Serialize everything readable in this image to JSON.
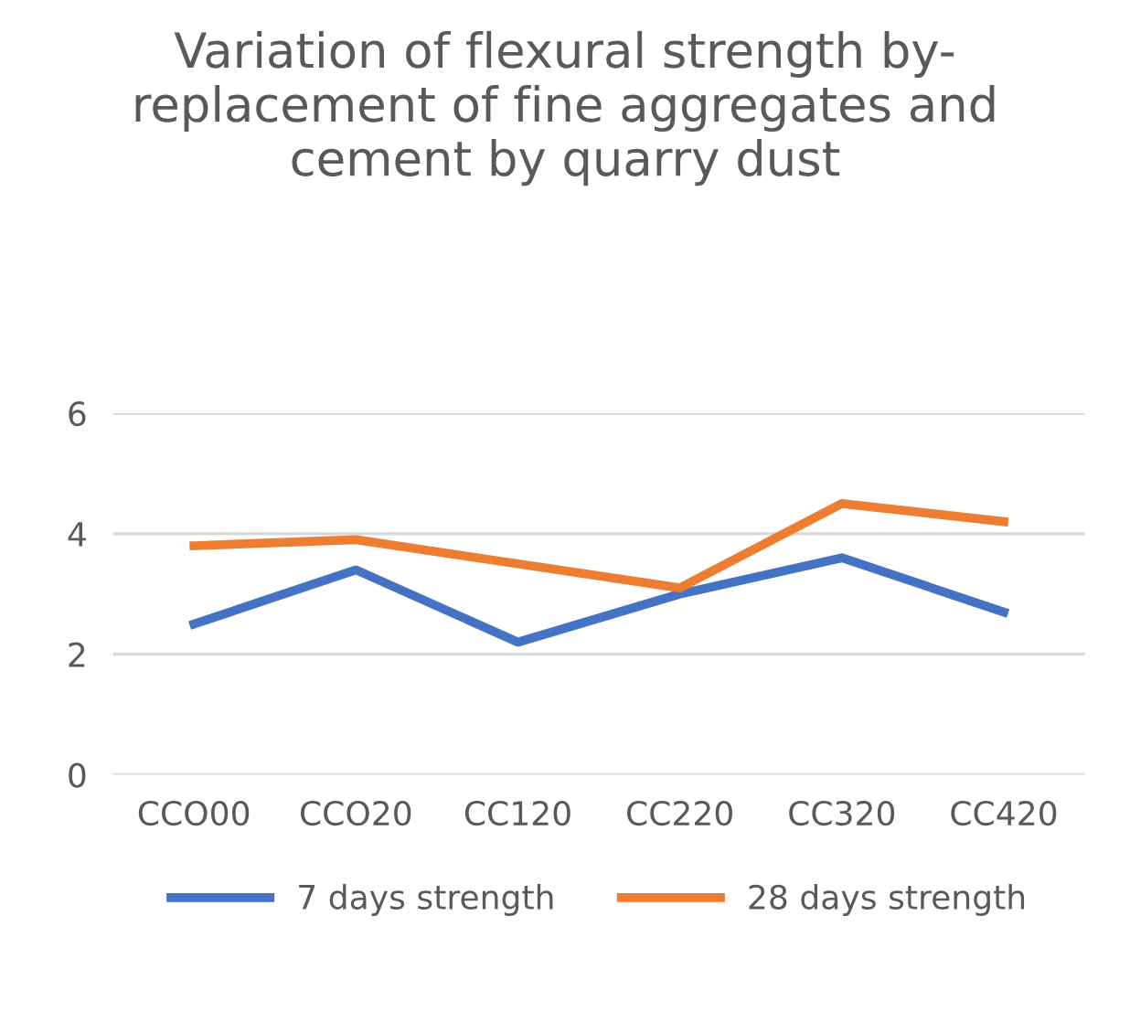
{
  "chart_data": {
    "type": "line",
    "title": "Variation of flexural strength by- replacement of fine aggregates and cement by quarry dust",
    "categories": [
      "CCO00",
      "CCO20",
      "CC120",
      "CC220",
      "CC320",
      "CC420"
    ],
    "series": [
      {
        "name": "7 days strength",
        "color": "#4472c4",
        "values": [
          2.5,
          3.4,
          2.2,
          3.0,
          3.6,
          2.7
        ]
      },
      {
        "name": "28 days strength",
        "color": "#ed7d31",
        "values": [
          3.8,
          3.9,
          3.5,
          3.1,
          4.5,
          4.2
        ]
      }
    ],
    "ylim": [
      0,
      6
    ],
    "yticks": [
      0,
      2,
      4,
      6
    ],
    "grid": "y",
    "legend": "bottom",
    "marker": "none",
    "line_style": "solid"
  }
}
